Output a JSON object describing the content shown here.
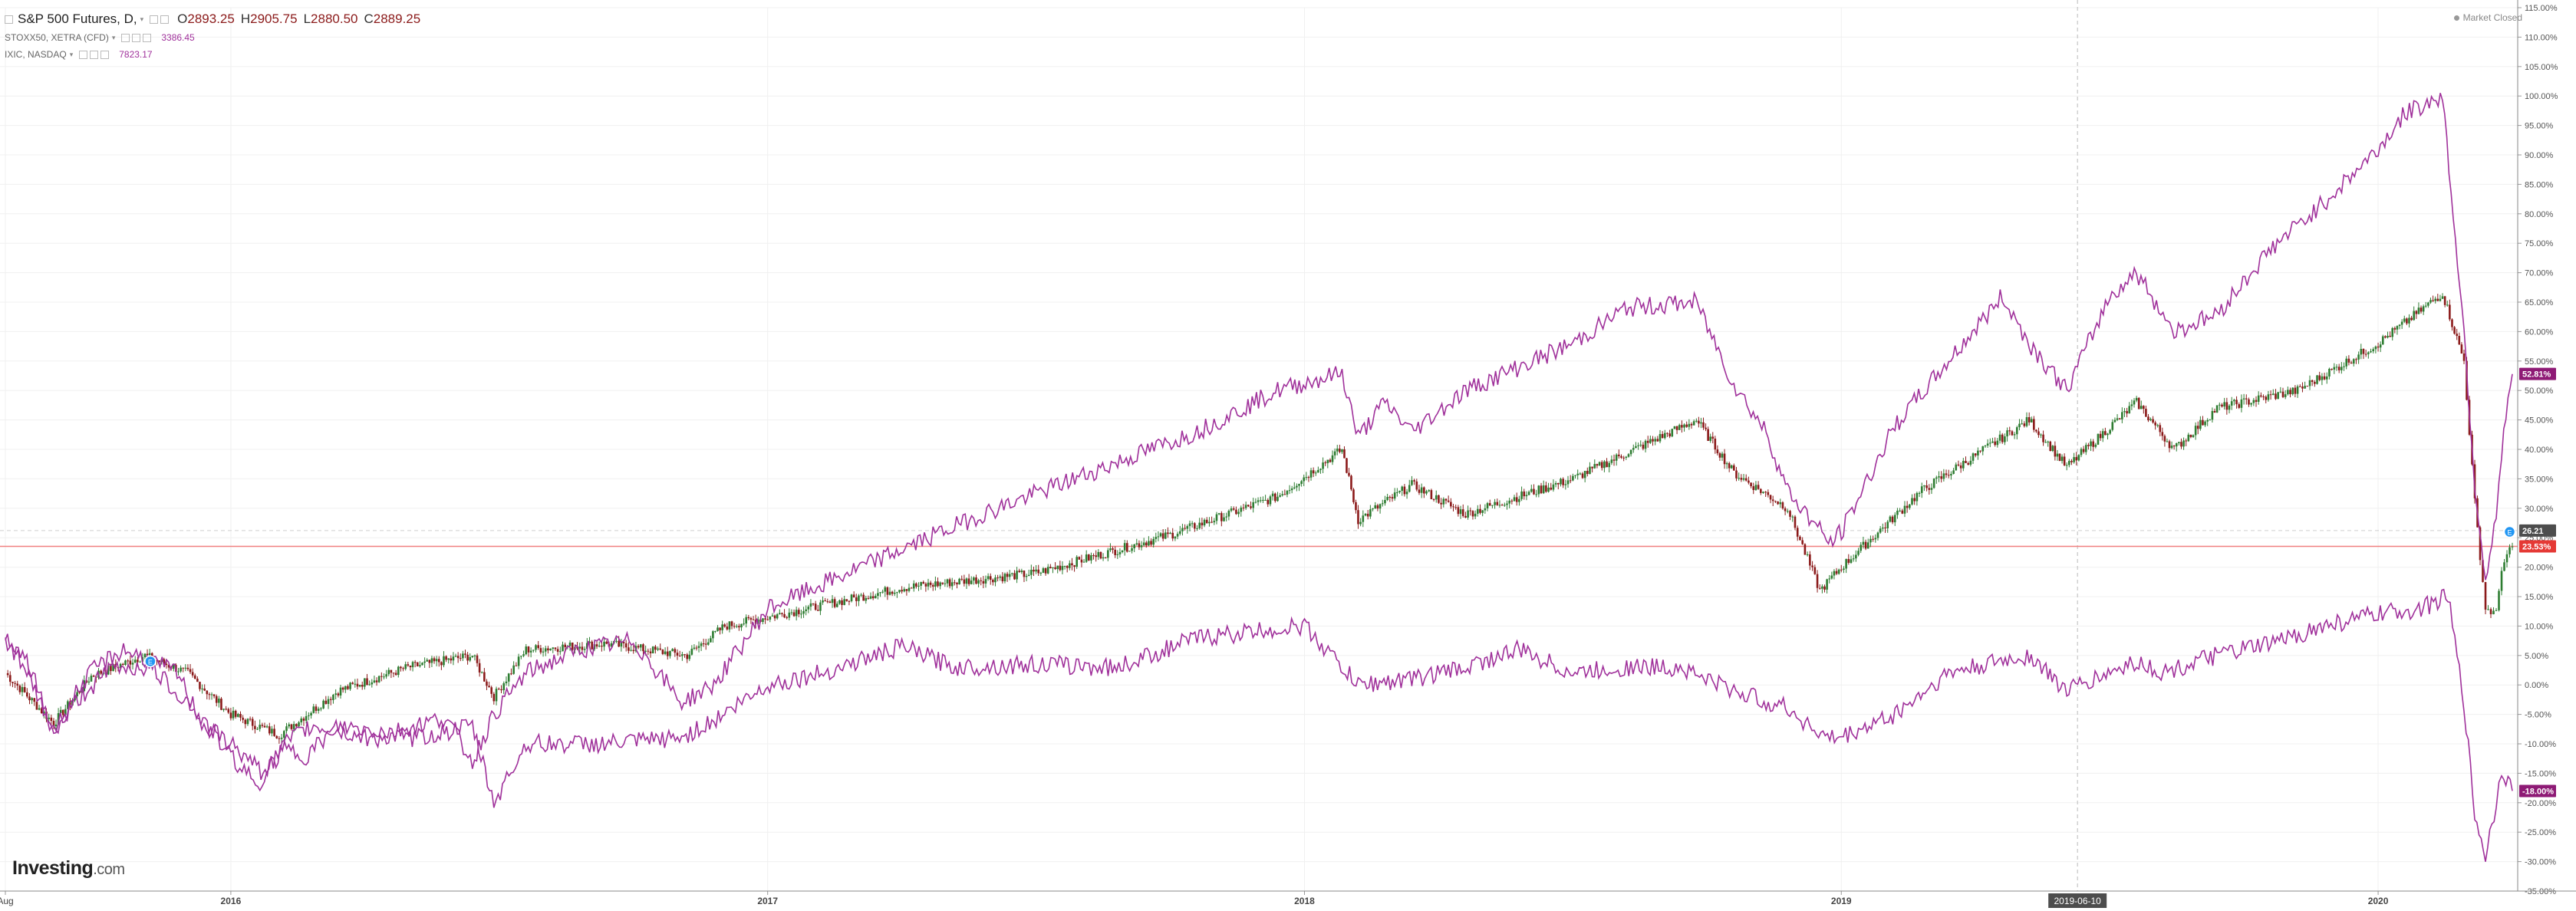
{
  "legend": {
    "main": {
      "symbol": "S&P 500 Futures, D,",
      "open_key": "O",
      "open": "2893.25",
      "high_key": "H",
      "high": "2905.75",
      "low_key": "L",
      "low": "2880.50",
      "close_key": "C",
      "close": "2889.25"
    },
    "compare1": {
      "symbol": "STOXX50, XETRA (CFD)",
      "value": "3386.45"
    },
    "compare2": {
      "symbol": "IXIC, NASDAQ",
      "value": "7823.17"
    }
  },
  "status": {
    "label": "Market Closed"
  },
  "brand": {
    "name": "Investing",
    "domain": ".com"
  },
  "crosshair": {
    "date_label": "2019-06-10"
  },
  "colors": {
    "up_candle": "#2e7d32",
    "down_candle": "#8b1a1a",
    "compare_line": "#a0319b",
    "price_line": "#f08080",
    "last_badge": "#e53935",
    "compare_badge": "#8e1a75",
    "neutral_badge": "#4d4d4d",
    "event_marker": "#2196f3"
  },
  "icons": {
    "event": "event-marker-icon",
    "status": "status-dot-icon",
    "dropdown": "chevron-down-icon"
  },
  "chart_data": {
    "type": "line",
    "title": "S&P 500 Futures, D,",
    "xlabel": "",
    "ylabel": "",
    "x_unit": "fractional year",
    "ylim": [
      -35,
      115
    ],
    "y_unit": "% change",
    "grid": true,
    "legend": "top-left",
    "x_ticks": [
      {
        "label": "Aug",
        "x": 2015.58
      },
      {
        "label": "2016",
        "x": 2016.0
      },
      {
        "label": "2017",
        "x": 2017.0
      },
      {
        "label": "2018",
        "x": 2018.0
      },
      {
        "label": "2019",
        "x": 2019.0
      },
      {
        "label": "2020",
        "x": 2020.0
      }
    ],
    "y_ticks": [
      115,
      110,
      105,
      100,
      95,
      90,
      85,
      80,
      75,
      70,
      65,
      60,
      55,
      50,
      45,
      40,
      35,
      30,
      25,
      20,
      15,
      10,
      5,
      0,
      -5,
      -10,
      -15,
      -20,
      -25,
      -30,
      -35
    ],
    "badges": [
      {
        "label": "52.81%",
        "value": 52.81,
        "color": "compare_badge"
      },
      {
        "label": "26.21",
        "value": 26.21,
        "color": "neutral_badge"
      },
      {
        "label": "23.53%",
        "value": 23.53,
        "color": "last_badge"
      },
      {
        "label": "-18.00%",
        "value": -18.0,
        "color": "compare_badge"
      }
    ],
    "price_line_value": 23.53,
    "dashed_line_value": 26.21,
    "series": [
      {
        "name": "S&P 500 Futures, D,",
        "style": "candles",
        "x": [
          2015.58,
          2015.67,
          2015.74,
          2015.84,
          2015.92,
          2016.0,
          2016.09,
          2016.2,
          2016.33,
          2016.45,
          2016.49,
          2016.55,
          2016.7,
          2016.85,
          2016.92,
          2017.0,
          2017.25,
          2017.5,
          2017.75,
          2017.95,
          2018.07,
          2018.1,
          2018.2,
          2018.3,
          2018.5,
          2018.73,
          2018.8,
          2018.9,
          2018.96,
          2019.0,
          2019.15,
          2019.35,
          2019.42,
          2019.55,
          2019.62,
          2019.7,
          2019.85,
          2020.0,
          2020.12,
          2020.16,
          2020.18,
          2020.2,
          2020.22,
          2020.23,
          2020.25
        ],
        "values": [
          2.0,
          -6.5,
          1.5,
          5.0,
          2.0,
          -5.0,
          -8.5,
          -1.0,
          3.0,
          5.0,
          -2.0,
          6.0,
          7.0,
          5.0,
          10.0,
          11.5,
          16.5,
          19.0,
          25.5,
          32.0,
          40.0,
          28.0,
          34.0,
          29.0,
          35.0,
          45.0,
          36.0,
          30.0,
          16.0,
          20.0,
          33.0,
          45.0,
          37.0,
          48.0,
          40.0,
          47.0,
          50.0,
          58.0,
          66.5,
          55.0,
          31.0,
          13.0,
          12.0,
          20.0,
          23.5
        ]
      },
      {
        "name": "IXIC, NASDAQ",
        "style": "line",
        "x": [
          2015.58,
          2015.62,
          2015.67,
          2015.72,
          2015.75,
          2015.8,
          2015.84,
          2015.9,
          2015.95,
          2016.0,
          2016.06,
          2016.1,
          2016.14,
          2016.2,
          2016.3,
          2016.4,
          2016.45,
          2016.49,
          2016.55,
          2016.65,
          2016.75,
          2016.84,
          2016.9,
          2017.0,
          2017.2,
          2017.4,
          2017.6,
          2017.8,
          2017.95,
          2018.07,
          2018.1,
          2018.15,
          2018.2,
          2018.3,
          2018.5,
          2018.6,
          2018.73,
          2018.8,
          2018.86,
          2018.9,
          2018.98,
          2019.0,
          2019.1,
          2019.3,
          2019.35,
          2019.42,
          2019.5,
          2019.55,
          2019.62,
          2019.7,
          2019.8,
          2019.9,
          2020.0,
          2020.05,
          2020.12,
          2020.16,
          2020.18,
          2020.2,
          2020.22,
          2020.23,
          2020.25
        ],
        "values": [
          7.0,
          4.0,
          -8.0,
          0.0,
          3.0,
          6.0,
          4.5,
          2.0,
          -7.0,
          -10.0,
          -15.0,
          -11.0,
          -12.0,
          -7.0,
          -8.0,
          -5.5,
          -13.0,
          -5.0,
          2.0,
          6.0,
          7.5,
          -3.0,
          0.0,
          13.0,
          21.0,
          29.0,
          36.0,
          43.0,
          50.0,
          53.0,
          42.0,
          48.0,
          43.0,
          50.0,
          58.0,
          64.0,
          65.0,
          51.0,
          43.0,
          33.0,
          24.0,
          26.0,
          44.0,
          66.0,
          58.0,
          50.0,
          66.0,
          70.0,
          60.0,
          63.0,
          74.0,
          82.0,
          91.0,
          97.0,
          100.0,
          60.0,
          34.0,
          18.0,
          28.0,
          40.0,
          52.8
        ]
      },
      {
        "name": "STOXX50, XETRA (CFD)",
        "style": "line",
        "x": [
          2015.58,
          2015.62,
          2015.67,
          2015.72,
          2015.78,
          2015.85,
          2015.92,
          2016.0,
          2016.05,
          2016.1,
          2016.15,
          2016.25,
          2016.35,
          2016.45,
          2016.49,
          2016.55,
          2016.7,
          2016.84,
          2016.9,
          2017.0,
          2017.1,
          2017.25,
          2017.35,
          2017.5,
          2017.65,
          2017.8,
          2017.9,
          2018.0,
          2018.1,
          2018.2,
          2018.3,
          2018.4,
          2018.5,
          2018.6,
          2018.7,
          2018.8,
          2018.9,
          2018.97,
          2019.0,
          2019.1,
          2019.2,
          2019.35,
          2019.42,
          2019.55,
          2019.6,
          2019.7,
          2019.8,
          2019.9,
          2020.0,
          2020.08,
          2020.13,
          2020.16,
          2020.18,
          2020.2,
          2020.22,
          2020.23,
          2020.25
        ],
        "values": [
          8.0,
          2.0,
          -8.0,
          -2.0,
          3.0,
          3.0,
          -3.0,
          -12.0,
          -17.0,
          -10.0,
          -7.0,
          -9.0,
          -9.0,
          -7.0,
          -20.0,
          -10.0,
          -10.0,
          -9.0,
          -6.0,
          0.0,
          2.0,
          6.5,
          3.0,
          3.5,
          3.0,
          8.0,
          9.0,
          10.0,
          0.0,
          1.0,
          3.0,
          6.0,
          2.0,
          3.0,
          3.0,
          -1.0,
          -4.0,
          -9.0,
          -9.0,
          -5.0,
          2.0,
          5.0,
          -1.0,
          4.0,
          2.0,
          5.0,
          7.0,
          10.0,
          12.0,
          13.0,
          15.0,
          -3.0,
          -22.0,
          -29.0,
          -20.0,
          -14.0,
          -18.0
        ]
      }
    ]
  }
}
